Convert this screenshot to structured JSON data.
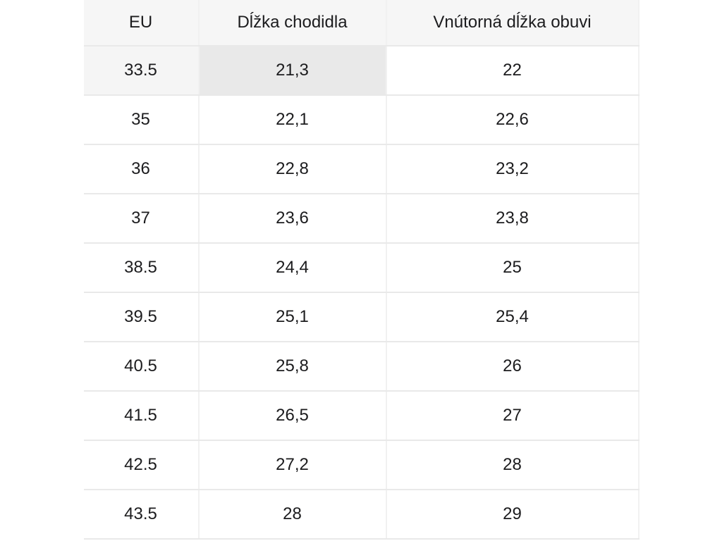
{
  "table": {
    "columns": [
      {
        "key": "eu",
        "label": "EU"
      },
      {
        "key": "foot",
        "label": "Dĺžka chodidla"
      },
      {
        "key": "inner",
        "label": "Vnútorná dĺžka obuvi"
      }
    ],
    "rows": [
      {
        "eu": "33.5",
        "foot": "21,3",
        "inner": "22",
        "shaded": true,
        "highlighted_cell": "foot"
      },
      {
        "eu": "35",
        "foot": "22,1",
        "inner": "22,6"
      },
      {
        "eu": "36",
        "foot": "22,8",
        "inner": "23,2"
      },
      {
        "eu": "37",
        "foot": "23,6",
        "inner": "23,8"
      },
      {
        "eu": "38.5",
        "foot": "24,4",
        "inner": "25"
      },
      {
        "eu": "39.5",
        "foot": "25,1",
        "inner": "25,4"
      },
      {
        "eu": "40.5",
        "foot": "25,8",
        "inner": "26"
      },
      {
        "eu": "41.5",
        "foot": "26,5",
        "inner": "27"
      },
      {
        "eu": "42.5",
        "foot": "27,2",
        "inner": "28"
      },
      {
        "eu": "43.5",
        "foot": "28",
        "inner": "29"
      }
    ],
    "colors": {
      "header_bg": "#f6f6f6",
      "row_header_highlight_bg": "#f5f5f5",
      "cell_highlight_bg": "#e9e9e9",
      "row_border": "#e9e9e9",
      "column_border": "#f1f1f1",
      "text": "#1c1c1e",
      "background": "#ffffff"
    }
  }
}
